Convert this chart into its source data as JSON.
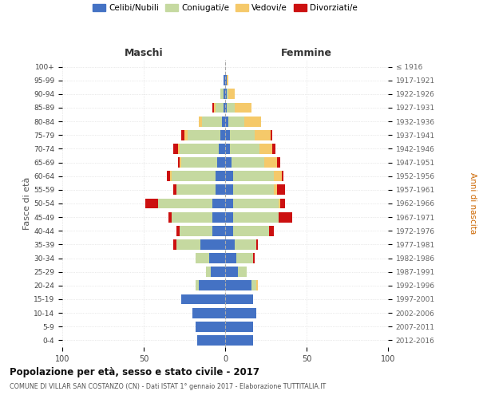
{
  "age_groups": [
    "0-4",
    "5-9",
    "10-14",
    "15-19",
    "20-24",
    "25-29",
    "30-34",
    "35-39",
    "40-44",
    "45-49",
    "50-54",
    "55-59",
    "60-64",
    "65-69",
    "70-74",
    "75-79",
    "80-84",
    "85-89",
    "90-94",
    "95-99",
    "100+"
  ],
  "birth_years": [
    "2012-2016",
    "2007-2011",
    "2002-2006",
    "1997-2001",
    "1992-1996",
    "1987-1991",
    "1982-1986",
    "1977-1981",
    "1972-1976",
    "1967-1971",
    "1962-1966",
    "1957-1961",
    "1952-1956",
    "1947-1951",
    "1942-1946",
    "1937-1941",
    "1932-1936",
    "1927-1931",
    "1922-1926",
    "1917-1921",
    "≤ 1916"
  ],
  "male": {
    "celibi": [
      17,
      18,
      20,
      27,
      16,
      9,
      10,
      15,
      8,
      8,
      8,
      6,
      6,
      5,
      4,
      3,
      2,
      1,
      1,
      1,
      0
    ],
    "coniugati": [
      0,
      0,
      0,
      0,
      2,
      3,
      8,
      15,
      20,
      25,
      33,
      24,
      27,
      22,
      24,
      20,
      12,
      5,
      2,
      0,
      0
    ],
    "vedovi": [
      0,
      0,
      0,
      0,
      0,
      0,
      0,
      0,
      0,
      0,
      0,
      0,
      1,
      1,
      1,
      2,
      2,
      1,
      0,
      0,
      0
    ],
    "divorziati": [
      0,
      0,
      0,
      0,
      0,
      0,
      0,
      2,
      2,
      2,
      8,
      2,
      2,
      1,
      3,
      2,
      0,
      1,
      0,
      0,
      0
    ]
  },
  "female": {
    "nubili": [
      17,
      17,
      19,
      17,
      16,
      8,
      7,
      6,
      5,
      5,
      5,
      5,
      5,
      4,
      3,
      3,
      2,
      1,
      1,
      1,
      0
    ],
    "coniugate": [
      0,
      0,
      0,
      0,
      3,
      5,
      10,
      13,
      22,
      28,
      28,
      25,
      25,
      20,
      18,
      15,
      10,
      5,
      1,
      0,
      0
    ],
    "vedove": [
      0,
      0,
      0,
      0,
      1,
      0,
      0,
      0,
      0,
      0,
      1,
      2,
      5,
      8,
      8,
      10,
      10,
      10,
      4,
      1,
      0
    ],
    "divorziate": [
      0,
      0,
      0,
      0,
      0,
      0,
      1,
      1,
      3,
      8,
      3,
      5,
      1,
      2,
      2,
      1,
      0,
      0,
      0,
      0,
      0
    ]
  },
  "colors": {
    "celibi_nubili": "#4472c4",
    "coniugati_e": "#c5d9a0",
    "vedovi_e": "#f5c96a",
    "divorziati_e": "#cc1010"
  },
  "title": "Popolazione per età, sesso e stato civile - 2017",
  "subtitle": "COMUNE DI VILLAR SAN COSTANZO (CN) - Dati ISTAT 1° gennaio 2017 - Elaborazione TUTTITALIA.IT",
  "xlabel_left": "Maschi",
  "xlabel_right": "Femmine",
  "ylabel_left": "Fasce di età",
  "ylabel_right": "Anni di nascita",
  "xlim": 100,
  "bg_color": "#ffffff",
  "grid_color": "#cccccc",
  "bar_height": 0.75
}
